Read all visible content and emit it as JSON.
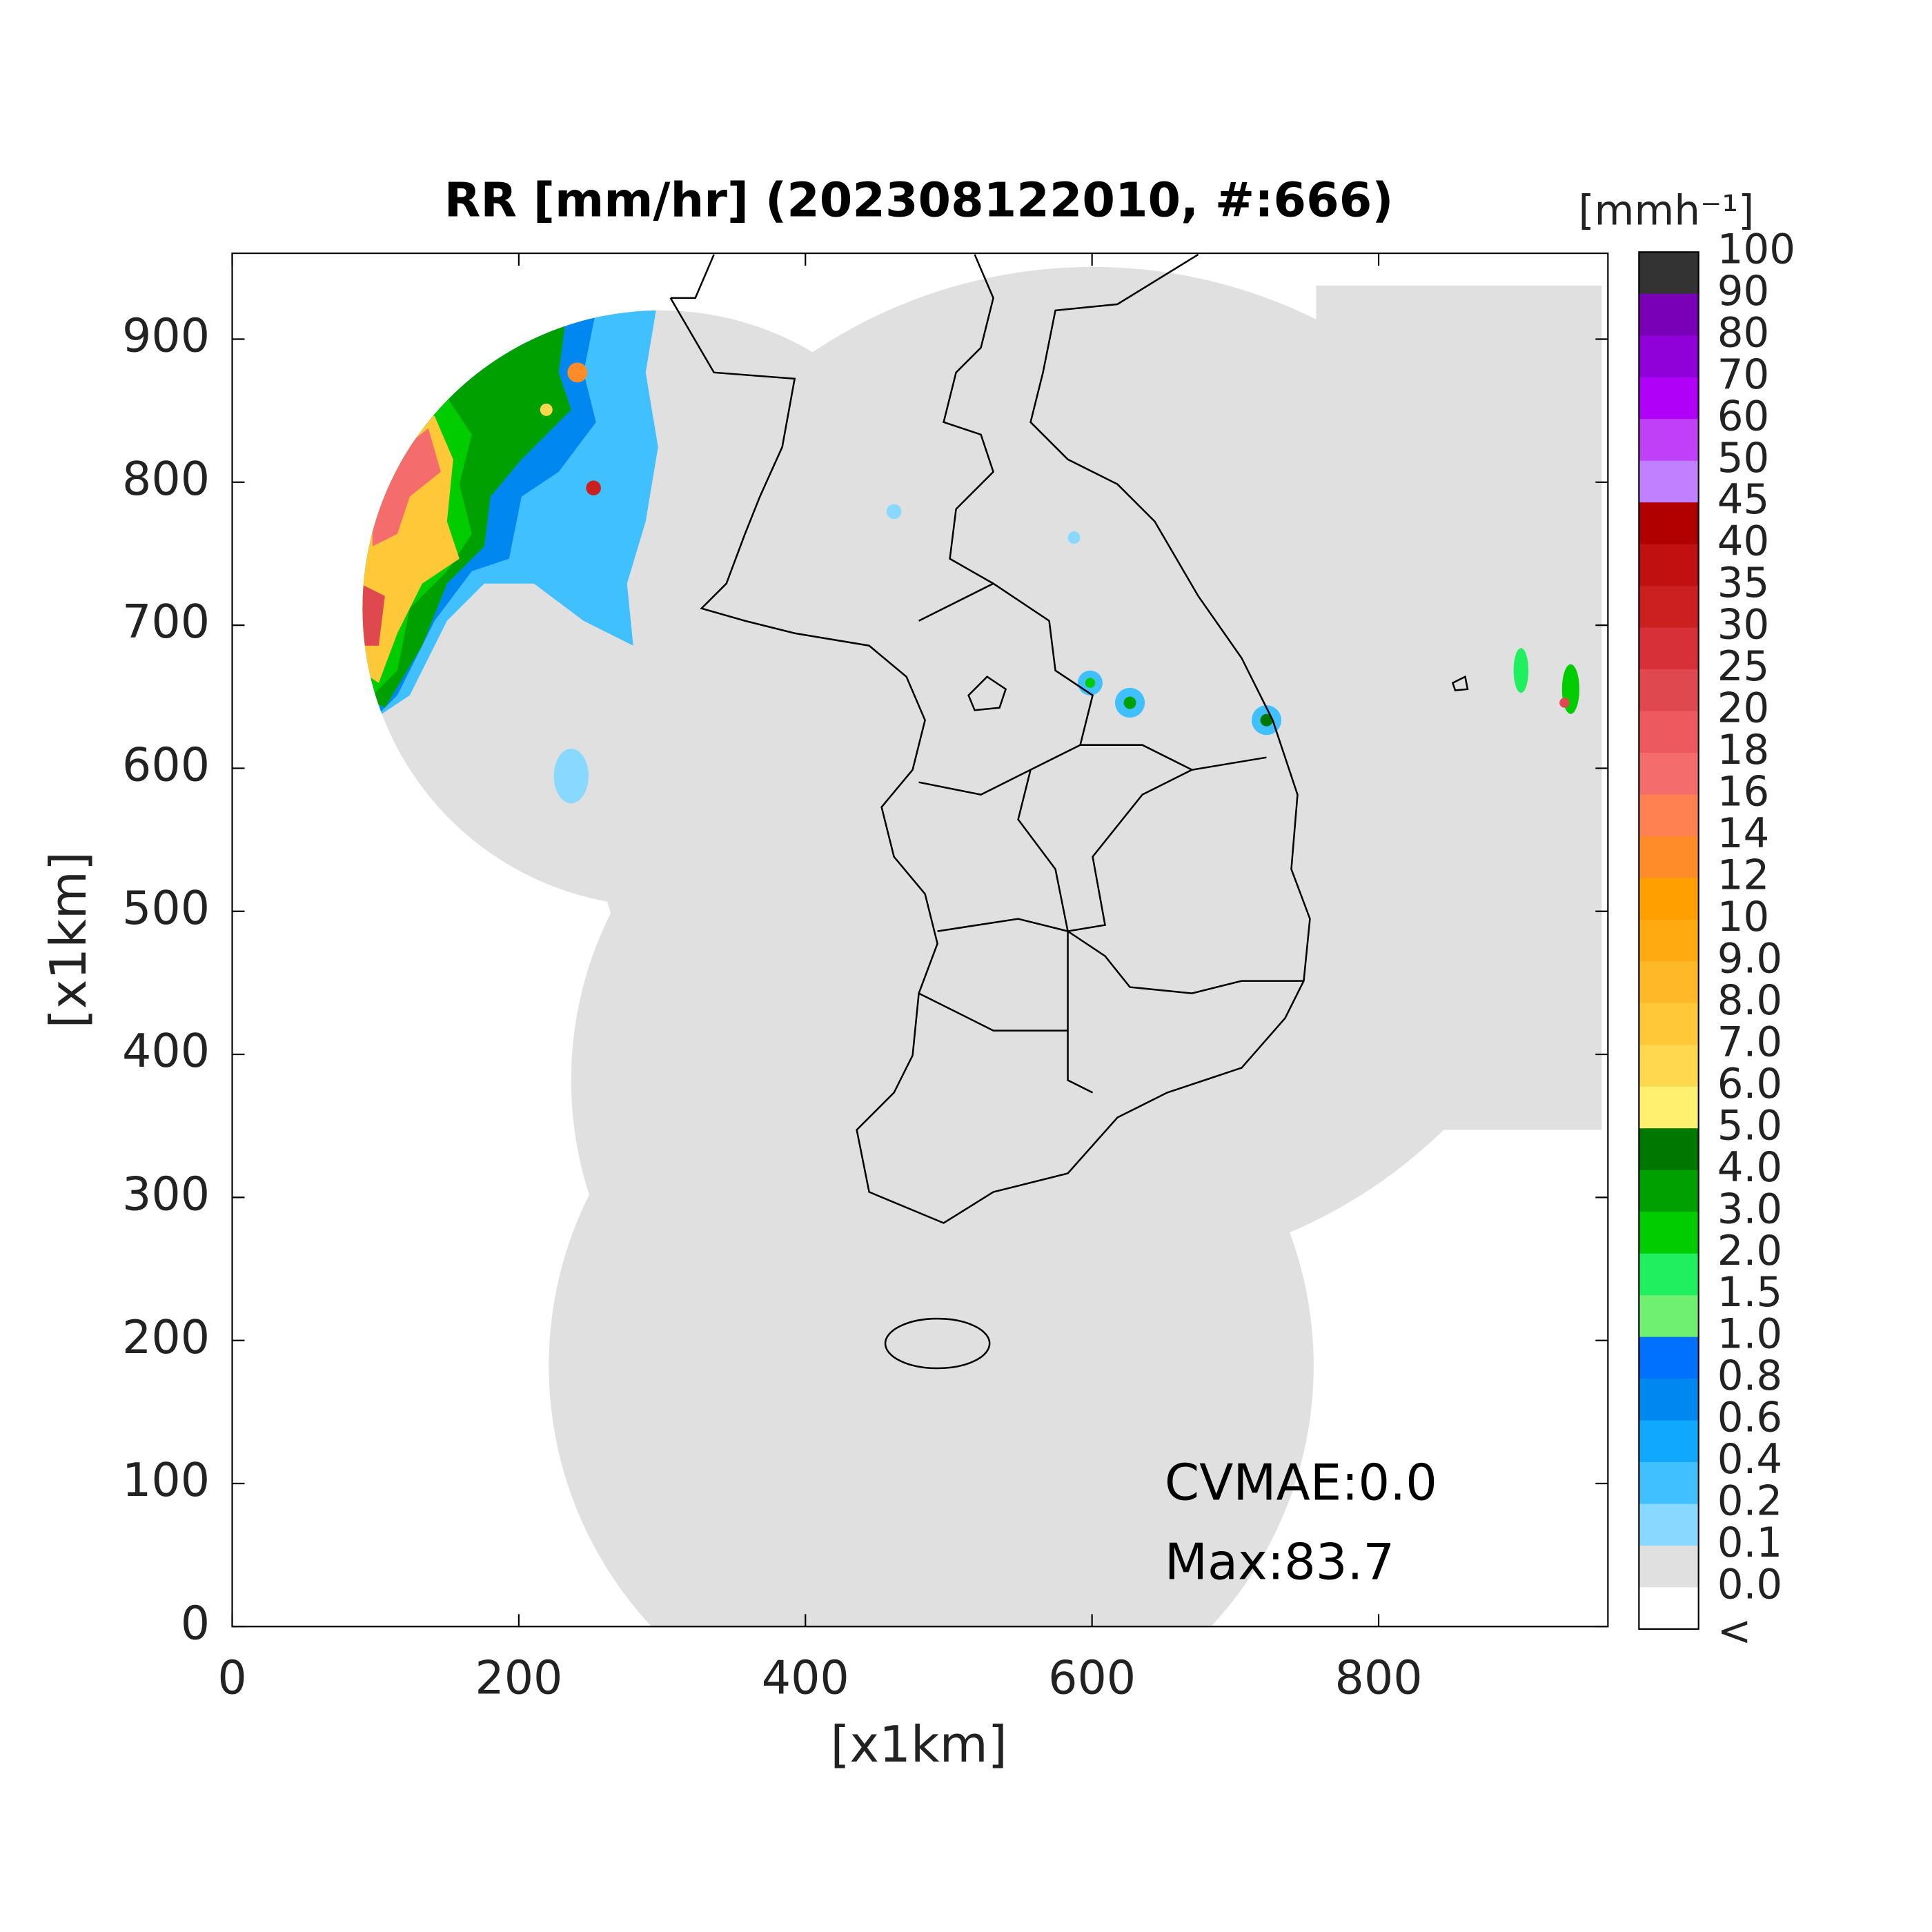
{
  "map": {
    "title": "RR [mm/hr] (202308122010, #:666)",
    "xlabel": "[x1km]",
    "ylabel": "[x1km]",
    "xlim": [
      0,
      960
    ],
    "ylim": [
      0,
      960
    ],
    "xticks": [
      0,
      200,
      400,
      600,
      800
    ],
    "yticks": [
      0,
      100,
      200,
      300,
      400,
      500,
      600,
      700,
      800,
      900
    ],
    "annotations": [
      "CVMAE:0.0",
      "Max:83.7"
    ],
    "colorbar": {
      "title": "[mmh⁻¹]",
      "levels": [
        100,
        90,
        80,
        70,
        60,
        50,
        45,
        40,
        35,
        30,
        25,
        20,
        18,
        16,
        14,
        12,
        10,
        {
          "value": 9,
          "label": "9.0"
        },
        {
          "value": 8,
          "label": "8.0"
        },
        {
          "value": 7,
          "label": "7.0"
        },
        {
          "value": 6,
          "label": "6.0"
        },
        {
          "value": 5,
          "label": "5.0"
        },
        {
          "value": 4,
          "label": "4.0"
        },
        {
          "value": 3,
          "label": "3.0"
        },
        {
          "value": 2,
          "label": "2.0"
        },
        1.5,
        {
          "value": 1,
          "label": "1.0"
        },
        0.8,
        0.6,
        0.4,
        0.2,
        0.1,
        {
          "value": 0,
          "label": "0.0"
        }
      ],
      "below_label": "<",
      "colors": [
        "#333333",
        "#7a00b8",
        "#9000d8",
        "#b000f8",
        "#c040f8",
        "#c080ff",
        "#b00000",
        "#c01010",
        "#cc2020",
        "#d83038",
        "#e04850",
        "#ec5a60",
        "#f46c6c",
        "#ff8050",
        "#ff8c28",
        "#ffa000",
        "#ffaa10",
        "#ffb828",
        "#ffc838",
        "#ffd850",
        "#fff070",
        "#007800",
        "#00a000",
        "#00cc00",
        "#20f060",
        "#70f070",
        "#0070ff",
        "#0088f0",
        "#10a8ff",
        "#40c0ff",
        "#88d8ff",
        "#e0e0e0",
        "#ffffff"
      ]
    }
  }
}
